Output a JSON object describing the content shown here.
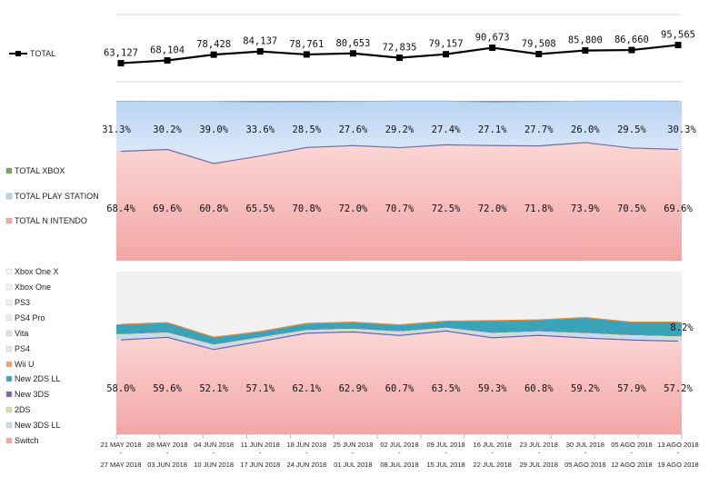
{
  "colors": {
    "nintendo": "#f3a6a6",
    "playstation": "#b9d3f3",
    "xbox": "#7aa84a",
    "switch": "#f3a6a6",
    "new3dsll": "#c6daf0",
    "2ds": "#cfe3a0",
    "new3ds": "#7d5fa8",
    "new2dsll": "#3aa3b8",
    "wiiu": "#f2a65a",
    "ps4": "#e6e6e6",
    "vita": "#e0e0e0",
    "ps4pro": "#ededed",
    "ps3": "#f0f0f0",
    "xboxone": "#f2f2f2",
    "xboxonex": "#f4f4f4"
  },
  "chart_data": [
    {
      "type": "line",
      "categories": [
        "21 MAY 2018 - 27 MAY 2018",
        "28 MAY 2018 - 03 JUN 2018",
        "04 JUN 2018 - 10 JUN 2018",
        "11 JUN 2018 - 17 JUN 2018",
        "18 JUN 2018 - 24 JUN 2018",
        "25 JUN 2018 - 01 JUL 2018",
        "02 JUL 2018 - 08 JUL 2018",
        "09 JUL 2018 - 15 JUL 2018",
        "16 JUL 2018 - 22 JUL 2018",
        "23 JUL 2018 - 29 JUL 2018",
        "30 JUL 2018 - 05 AGO 2018",
        "05 AGO 2018 - 12 AGO 2018",
        "13 AGO 2018 - 19 AGO 2018"
      ],
      "series": [
        {
          "name": "TOTAL",
          "values": [
            63127,
            68104,
            78428,
            84137,
            78761,
            80653,
            72835,
            79157,
            90673,
            79508,
            85800,
            86660,
            95565
          ],
          "labels": [
            "63,127",
            "68,104",
            "78,428",
            "84,137",
            "78,761",
            "80,653",
            "72,835",
            "79,157",
            "90,673",
            "79,508",
            "85,800",
            "86,660",
            "95,565"
          ]
        }
      ],
      "legend": "left",
      "grid": true
    },
    {
      "type": "area",
      "stacked": "percent",
      "series": [
        {
          "name": "TOTAL N INTENDO",
          "values": [
            68.4,
            69.6,
            60.8,
            65.5,
            70.8,
            72.0,
            70.7,
            72.5,
            72.0,
            71.8,
            73.9,
            70.5,
            69.6
          ],
          "labels": [
            "68.4%",
            "69.6%",
            "60.8%",
            "65.5%",
            "70.8%",
            "72.0%",
            "70.7%",
            "72.5%",
            "72.0%",
            "71.8%",
            "73.9%",
            "70.5%",
            "69.6%"
          ]
        },
        {
          "name": "TOTAL PLAY STATION",
          "values": [
            31.3,
            30.2,
            39.0,
            33.6,
            28.5,
            27.6,
            29.2,
            27.4,
            27.1,
            27.7,
            26.0,
            29.5,
            30.3
          ],
          "labels": [
            "31.3%",
            "30.2%",
            "39.0%",
            "33.6%",
            "28.5%",
            "27.6%",
            "29.2%",
            "27.4%",
            "27.1%",
            "27.7%",
            "26.0%",
            "29.5%",
            "30.3%"
          ]
        },
        {
          "name": "TOTAL XBOX",
          "values": [
            0.3,
            0.2,
            0.2,
            0.9,
            0.7,
            0.4,
            0.1,
            0.1,
            0.9,
            0.5,
            0.1,
            0.0,
            0.1
          ]
        }
      ],
      "legend": "left"
    },
    {
      "type": "area",
      "stacked": "percent",
      "series": [
        {
          "name": "Switch",
          "values": [
            58.0,
            59.6,
            52.1,
            57.1,
            62.1,
            62.9,
            60.7,
            63.5,
            59.3,
            60.8,
            59.2,
            57.9,
            57.2
          ],
          "labels": [
            "58.0%",
            "59.6%",
            "52.1%",
            "57.1%",
            "62.1%",
            "62.9%",
            "60.7%",
            "63.5%",
            "59.3%",
            "60.8%",
            "59.2%",
            "57.9%",
            "57.2%"
          ]
        },
        {
          "name": "New 3DS LL",
          "values": [
            3.0,
            2.5,
            2.5,
            2.0,
            1.5,
            1.5,
            2.0,
            1.5,
            2.5,
            2.0,
            2.5,
            2.5,
            2.5
          ]
        },
        {
          "name": "2DS",
          "values": [
            0.5,
            0.5,
            0.5,
            0.5,
            0.5,
            0.5,
            0.5,
            0.5,
            0.5,
            0.5,
            0.5,
            0.5,
            0.5
          ]
        },
        {
          "name": "New 3DS",
          "values": [
            0.3,
            0.3,
            0.3,
            0.3,
            0.3,
            0.3,
            0.3,
            0.3,
            0.3,
            0.3,
            0.3,
            0.3,
            0.3
          ]
        },
        {
          "name": "New 2DS LL",
          "values": [
            5.5,
            5.5,
            4.0,
            3.0,
            3.5,
            3.5,
            3.5,
            3.5,
            7.0,
            6.5,
            9.0,
            7.5,
            8.2
          ],
          "labels": [
            "",
            "",
            "",
            "",
            "",
            "",
            "",
            "",
            "",
            "",
            "",
            "",
            "8.2%"
          ]
        },
        {
          "name": "Wii U",
          "values": [
            0.3,
            0.3,
            0.3,
            0.3,
            0.3,
            0.3,
            0.3,
            0.3,
            0.3,
            0.3,
            0.3,
            0.3,
            0.3
          ]
        },
        {
          "name": "PS4",
          "values": [
            31.7,
            30.8,
            39.8,
            36.3,
            31.3,
            30.5,
            32.2,
            29.9,
            29.6,
            29.1,
            27.7,
            30.5,
            30.9
          ]
        },
        {
          "name": "Vita",
          "values": [
            0.4,
            0.3,
            0.3,
            0.3,
            0.3,
            0.3,
            0.3,
            0.3,
            0.3,
            0.3,
            0.3,
            0.3,
            0.3
          ]
        },
        {
          "name": "PS4 Pro",
          "values": [
            0,
            0,
            0,
            0,
            0,
            0,
            0,
            0,
            0,
            0,
            0,
            0,
            0
          ]
        },
        {
          "name": "PS3",
          "values": [
            0,
            0,
            0,
            0,
            0,
            0,
            0,
            0,
            0,
            0,
            0,
            0,
            0
          ]
        },
        {
          "name": "Xbox One",
          "values": [
            0.3,
            0.2,
            0.2,
            0.2,
            0.2,
            0.2,
            0.1,
            0.1,
            0.2,
            0.1,
            0.1,
            0.1,
            0.1
          ]
        },
        {
          "name": "Xbox One X",
          "values": [
            0,
            0,
            0,
            0,
            0,
            0,
            0,
            0,
            0,
            0,
            0,
            0,
            0
          ]
        }
      ],
      "legend": "left"
    }
  ]
}
